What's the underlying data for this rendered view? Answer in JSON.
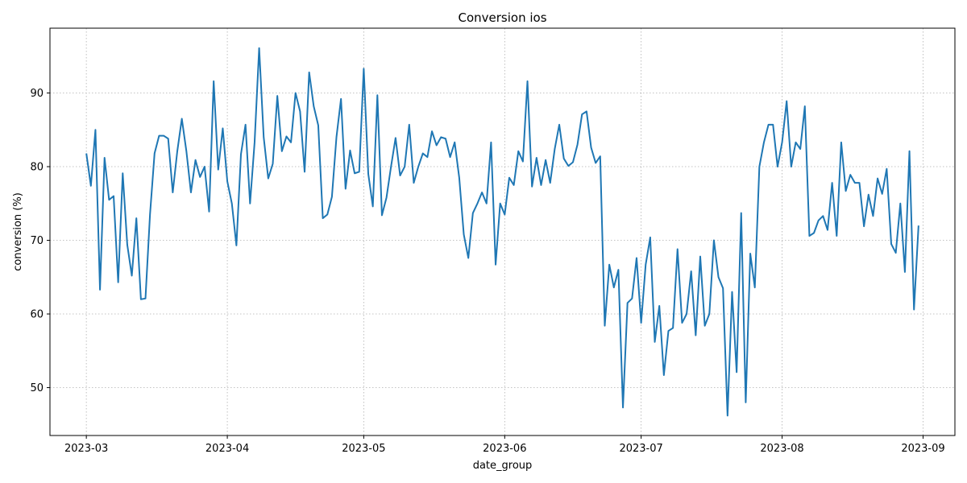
{
  "chart_data": {
    "type": "line",
    "title": "Conversion ios",
    "xlabel": "date_group",
    "ylabel": "conversion (%)",
    "x_ticks": [
      "2023-03",
      "2023-04",
      "2023-05",
      "2023-06",
      "2023-07",
      "2023-08",
      "2023-09"
    ],
    "y_ticks": [
      50,
      60,
      70,
      80,
      90
    ],
    "xlim": [
      "2023-02-21",
      "2023-09-08"
    ],
    "ylim": [
      43.5,
      98.8
    ],
    "grid": true,
    "line_color": "#1f77b4",
    "series": [
      {
        "x": [
          "2023-03-01",
          "2023-03-02",
          "2023-03-03",
          "2023-03-04",
          "2023-03-05",
          "2023-03-06",
          "2023-03-07",
          "2023-03-08",
          "2023-03-09",
          "2023-03-10",
          "2023-03-11",
          "2023-03-12",
          "2023-03-13",
          "2023-03-14",
          "2023-03-15",
          "2023-03-16",
          "2023-03-17",
          "2023-03-18",
          "2023-03-19",
          "2023-03-20",
          "2023-03-21",
          "2023-03-22",
          "2023-03-23",
          "2023-03-24",
          "2023-03-25",
          "2023-03-26",
          "2023-03-27",
          "2023-03-28",
          "2023-03-29",
          "2023-03-30",
          "2023-03-31",
          "2023-04-01",
          "2023-04-02",
          "2023-04-03",
          "2023-04-04",
          "2023-04-05",
          "2023-04-06",
          "2023-04-07",
          "2023-04-08",
          "2023-04-09",
          "2023-04-10",
          "2023-04-11",
          "2023-04-12",
          "2023-04-13",
          "2023-04-14",
          "2023-04-15",
          "2023-04-16",
          "2023-04-17",
          "2023-04-18",
          "2023-04-19",
          "2023-04-20",
          "2023-04-21",
          "2023-04-22",
          "2023-04-23",
          "2023-04-24",
          "2023-04-25",
          "2023-04-26",
          "2023-04-27",
          "2023-04-28",
          "2023-04-29",
          "2023-04-30",
          "2023-05-01",
          "2023-05-02",
          "2023-05-03",
          "2023-05-04",
          "2023-05-05",
          "2023-05-06",
          "2023-05-07",
          "2023-05-08",
          "2023-05-09",
          "2023-05-10",
          "2023-05-11",
          "2023-05-12",
          "2023-05-13",
          "2023-05-14",
          "2023-05-15",
          "2023-05-16",
          "2023-05-17",
          "2023-05-18",
          "2023-05-19",
          "2023-05-20",
          "2023-05-21",
          "2023-05-22",
          "2023-05-23",
          "2023-05-24",
          "2023-05-25",
          "2023-05-26",
          "2023-05-27",
          "2023-05-28",
          "2023-05-29",
          "2023-05-30",
          "2023-05-31",
          "2023-06-01",
          "2023-06-02",
          "2023-06-03",
          "2023-06-04",
          "2023-06-05",
          "2023-06-06",
          "2023-06-07",
          "2023-06-08",
          "2023-06-09",
          "2023-06-10",
          "2023-06-11",
          "2023-06-12",
          "2023-06-13",
          "2023-06-14",
          "2023-06-15",
          "2023-06-16",
          "2023-06-17",
          "2023-06-18",
          "2023-06-19",
          "2023-06-20",
          "2023-06-21",
          "2023-06-22",
          "2023-06-23",
          "2023-06-24",
          "2023-06-25",
          "2023-06-26",
          "2023-06-27",
          "2023-06-28",
          "2023-06-29",
          "2023-06-30",
          "2023-07-01",
          "2023-07-02",
          "2023-07-03",
          "2023-07-04",
          "2023-07-05",
          "2023-07-06",
          "2023-07-07",
          "2023-07-08",
          "2023-07-09",
          "2023-07-10",
          "2023-07-11",
          "2023-07-12",
          "2023-07-13",
          "2023-07-14",
          "2023-07-15",
          "2023-07-16",
          "2023-07-17",
          "2023-07-18",
          "2023-07-19",
          "2023-07-20",
          "2023-07-21",
          "2023-07-22",
          "2023-07-23",
          "2023-07-24",
          "2023-07-25",
          "2023-07-26",
          "2023-07-27",
          "2023-07-28",
          "2023-07-29",
          "2023-07-30",
          "2023-07-31",
          "2023-08-01",
          "2023-08-02",
          "2023-08-03",
          "2023-08-04",
          "2023-08-05",
          "2023-08-06",
          "2023-08-07",
          "2023-08-08",
          "2023-08-09",
          "2023-08-10",
          "2023-08-11",
          "2023-08-12",
          "2023-08-13",
          "2023-08-14",
          "2023-08-15",
          "2023-08-16",
          "2023-08-17",
          "2023-08-18",
          "2023-08-19",
          "2023-08-20",
          "2023-08-21",
          "2023-08-22",
          "2023-08-23",
          "2023-08-24",
          "2023-08-25",
          "2023-08-26",
          "2023-08-27",
          "2023-08-28",
          "2023-08-29",
          "2023-08-30",
          "2023-08-31"
        ],
        "y": [
          81.8,
          77.4,
          85.0,
          63.3,
          81.2,
          75.5,
          76.0,
          64.3,
          79.1,
          69.4,
          65.2,
          73.0,
          62.0,
          62.1,
          73.5,
          81.8,
          84.2,
          84.2,
          83.8,
          76.5,
          82.1,
          86.5,
          82.1,
          76.5,
          80.9,
          78.6,
          80.0,
          73.9,
          91.6,
          79.6,
          85.2,
          78.0,
          75.0,
          69.3,
          81.7,
          85.7,
          75.0,
          83.3,
          96.1,
          84.0,
          78.4,
          80.4,
          89.6,
          82.1,
          84.1,
          83.3,
          90.0,
          87.5,
          79.3,
          92.8,
          88.2,
          85.6,
          73.0,
          73.5,
          75.9,
          84.0,
          89.2,
          77.0,
          82.2,
          79.1,
          79.3,
          93.3,
          79.0,
          74.6,
          89.7,
          73.4,
          75.8,
          80.0,
          83.9,
          78.8,
          80.0,
          85.7,
          77.8,
          80.0,
          81.8,
          81.3,
          84.8,
          82.9,
          84.0,
          83.8,
          81.3,
          83.3,
          78.5,
          70.8,
          67.6,
          73.7,
          75.0,
          76.5,
          75.0,
          83.3,
          66.7,
          75.0,
          73.5,
          78.5,
          77.5,
          82.1,
          80.7,
          91.6,
          77.3,
          81.2,
          77.5,
          80.9,
          77.8,
          82.4,
          85.7,
          81.1,
          80.1,
          80.6,
          83.0,
          87.1,
          87.5,
          82.6,
          80.5,
          81.4,
          58.4,
          66.7,
          63.6,
          66.0,
          47.3,
          61.5,
          62.1,
          67.6,
          58.8,
          66.7,
          70.4,
          56.2,
          61.1,
          51.7,
          57.7,
          58.1,
          68.8,
          58.8,
          60.0,
          65.8,
          57.1,
          67.8,
          58.4,
          60.0,
          70.0,
          65.0,
          63.5,
          46.2,
          63.0,
          52.1,
          73.7,
          48.0,
          68.2,
          63.6,
          80.0,
          83.3,
          85.7,
          85.7,
          80.0,
          83.3,
          88.9,
          80.0,
          83.3,
          82.4,
          88.2,
          70.6,
          71.0,
          72.7,
          73.3,
          71.4,
          77.8,
          70.6,
          83.3,
          76.7,
          78.9,
          77.8,
          77.8,
          71.9,
          76.2,
          73.3,
          78.4,
          76.3,
          79.7,
          69.5,
          68.3,
          75.0,
          65.7,
          82.1,
          60.6,
          72.0
        ]
      }
    ]
  }
}
